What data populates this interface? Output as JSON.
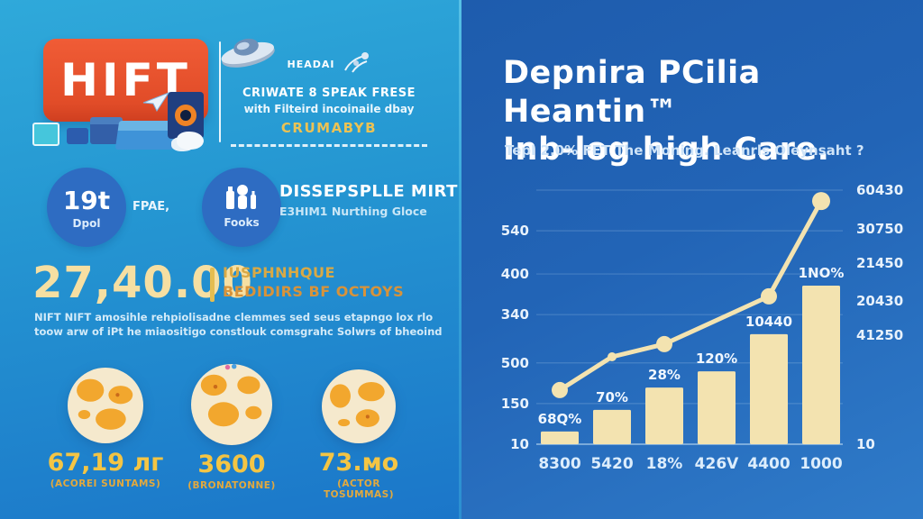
{
  "colors": {
    "panel_left_top": "#2FA9DA",
    "panel_left_bottom": "#1B76C9",
    "panel_right_top": "#1E5CAD",
    "panel_right_bottom": "#2F7BC9",
    "brand_orange": "#E65230",
    "accent_cream": "#F3E3B0",
    "accent_gold": "#EFC14A",
    "stat_circle_blue": "#2E6CC2"
  },
  "left_panel": {
    "logo_text": "HIFT",
    "promo": {
      "kicker": "HEADAI",
      "line1": "CRIWATE 8 SPEAK FRESE",
      "line2": "with Filteird incoinaile dbay",
      "highlight": "CRUMABYB"
    },
    "stats": {
      "circle1_value": "19t",
      "circle1_label": "Dpol",
      "between_text": "FPAE,",
      "circle2_label": "Fooks",
      "heading_title": "DISSEPSPLLE MIRT",
      "heading_subtitle": "E3HIM1 Nurthing Gloce"
    },
    "big_stat": {
      "value": "27,40.00",
      "label_line1": "IUSPHNHQUE",
      "label_line2": "BEDIDIRS BF OCTOYS",
      "desc_line1": "NIFT NIFT amosihle rehpiolisadne clemmes sed seus etapngo lox rlo",
      "desc_line2": "toow arw of iPt he miaositigo constlouk comsgrahc Solwrs of bheoind"
    },
    "globes": [
      {
        "value": "67,19 лг",
        "caption": "(ACOREI SUNTAMS)"
      },
      {
        "value": "3600",
        "caption": "(BRONATONNE)"
      },
      {
        "value": "73.мо",
        "caption": "(ACTOR TOSUMMAS)"
      }
    ]
  },
  "right_panel": {
    "title_line1": "Depnira PCilia Heantin™",
    "title_line2": "Inb-log high Care.",
    "subtitle": "Tepl 2.0% FET The Moning. Leanrls Oleynsaht ?",
    "chart_data": {
      "type": "bar",
      "title": "",
      "categories": [
        "8300",
        "5420",
        "18%",
        "426V",
        "4400",
        "1000"
      ],
      "bar_labels": [
        "68Q%",
        "70%",
        "28%",
        "120%",
        "10440",
        "1NO%"
      ],
      "bar_values_pct_of_plot": [
        5,
        13.5,
        22.3,
        28.7,
        43.3,
        62.4
      ],
      "line_series": {
        "name": "trend",
        "at_category_index": [
          0,
          1,
          2,
          4,
          5
        ],
        "values_pct_of_plot": [
          21.3,
          34.4,
          39.4,
          58.2,
          95.7
        ]
      },
      "y_axis_left_ticks": [
        {
          "label": "540",
          "pos": 0.16
        },
        {
          "label": "400",
          "pos": 0.33
        },
        {
          "label": "340",
          "pos": 0.49
        },
        {
          "label": "500",
          "pos": 0.68
        },
        {
          "label": "150",
          "pos": 0.84
        },
        {
          "label": "10",
          "pos": 1
        }
      ],
      "y_axis_right_ticks": [
        {
          "label": "60430",
          "pos": 0
        },
        {
          "label": "30750",
          "pos": 0.152
        },
        {
          "label": "21450",
          "pos": 0.287
        },
        {
          "label": "20430",
          "pos": 0.436
        },
        {
          "label": "41250",
          "pos": 0.571
        },
        {
          "label": "10",
          "pos": 1
        }
      ],
      "grid_positions": [
        0,
        0.16,
        0.33,
        0.49,
        0.68,
        0.84
      ],
      "legend": false,
      "colors": {
        "bar": "#F3E3B0",
        "line": "#F3E3B0",
        "bar_label": "#F0F7FF",
        "tick_label": "#E8F2FC",
        "x_label": "#DCEDFC",
        "grid": "#BFDCF2"
      }
    }
  }
}
